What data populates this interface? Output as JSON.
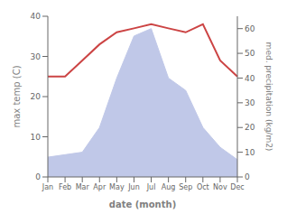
{
  "chart_data": {
    "type": "line",
    "xlabel": "date (month)",
    "ylabel": "max temp (C)",
    "y2label": "med. precipitation (kg/m2)",
    "categories": [
      "Jan",
      "Feb",
      "Mar",
      "Apr",
      "May",
      "Jun",
      "Jul",
      "Aug",
      "Sep",
      "Oct",
      "Nov",
      "Dec"
    ],
    "series": [
      {
        "type": "line",
        "color": "#cc4444",
        "values": [
          25,
          25,
          29,
          33,
          36,
          37,
          38,
          37,
          36,
          38,
          29,
          25
        ]
      },
      {
        "type": "area",
        "color": "#c0c8e8",
        "axis": "y2",
        "values": [
          8,
          9,
          10,
          20,
          40,
          57,
          60,
          40,
          35,
          20,
          12,
          7
        ]
      }
    ],
    "ylim": [
      0,
      40
    ],
    "yticks": [
      0,
      10,
      20,
      30,
      40
    ],
    "y2lim": [
      0,
      65
    ],
    "y2ticks": [
      0,
      10,
      20,
      30,
      40,
      50,
      60
    ]
  }
}
